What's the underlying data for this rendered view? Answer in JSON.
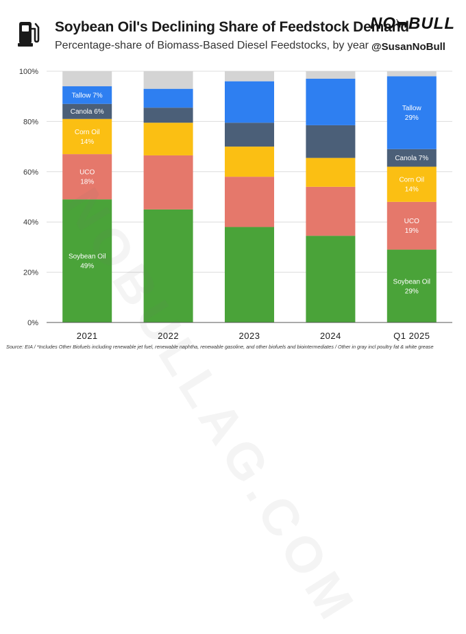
{
  "header": {
    "title": "Soybean Oil's Declining Share of Feedstock Demand",
    "subtitle": "Percentage-share of Biomass-Based Diesel Feedstocks, by year",
    "brand_left": "NO",
    "brand_right": "BULL",
    "handle": "@SusanNoBull"
  },
  "watermark": "NOBULLAG.COM",
  "footer": {
    "source": "Source: EIA / *Includes Other Biofuels including renewable jet fuel, renewable naphtha, renewable gasoline, and other biofuels and biointermediates / Other in gray incl poultry fat & white grease"
  },
  "colors": {
    "Soybean Oil": "#4aa339",
    "UCO": "#e5786b",
    "Corn Oil": "#fbbf13",
    "Canola": "#4b5f78",
    "Tallow": "#2e7ff1",
    "Other": "#d4d4d4",
    "grid": "#dcdcdc",
    "axis": "#555555",
    "label_light": "#ffffff"
  },
  "chart_data": {
    "type": "bar",
    "stacked": true,
    "title": "Soybean Oil's Declining Share of Feedstock Demand",
    "subtitle": "Percentage-share of Biomass-Based Diesel Feedstocks, by year",
    "xlabel": "",
    "ylabel": "",
    "ylim": [
      0,
      100
    ],
    "yticks": [
      0,
      20,
      40,
      60,
      80,
      100
    ],
    "ytick_labels": [
      "0%",
      "20%",
      "40%",
      "60%",
      "80%",
      "100%"
    ],
    "grid": true,
    "categories": [
      "2021",
      "2022",
      "2023",
      "2024",
      "Q1 2025"
    ],
    "series": [
      {
        "name": "Soybean Oil",
        "values": [
          49,
          45,
          38,
          34.5,
          29
        ]
      },
      {
        "name": "UCO",
        "values": [
          18,
          21.5,
          20,
          19.5,
          19
        ]
      },
      {
        "name": "Corn Oil",
        "values": [
          14,
          13,
          12,
          11.5,
          14
        ]
      },
      {
        "name": "Canola",
        "values": [
          6,
          6,
          9.5,
          13,
          7
        ]
      },
      {
        "name": "Tallow",
        "values": [
          7,
          7.5,
          16.5,
          18.5,
          29
        ]
      },
      {
        "name": "Other",
        "values": [
          6,
          7,
          4,
          3,
          2
        ]
      }
    ],
    "data_labels": [
      {
        "category": "2021",
        "series": "Soybean Oil",
        "name": "Soybean Oil",
        "value": "49%"
      },
      {
        "category": "2021",
        "series": "UCO",
        "name": "UCO",
        "value": "18%"
      },
      {
        "category": "2021",
        "series": "Corn Oil",
        "name": "Corn Oil",
        "value": "14%"
      },
      {
        "category": "2021",
        "series": "Canola",
        "text": "Canola 6%"
      },
      {
        "category": "2021",
        "series": "Tallow",
        "text": "Tallow 7%"
      },
      {
        "category": "Q1 2025",
        "series": "Soybean Oil",
        "name": "Soybean Oil",
        "value": "29%"
      },
      {
        "category": "Q1 2025",
        "series": "UCO",
        "name": "UCO",
        "value": "19%"
      },
      {
        "category": "Q1 2025",
        "series": "Corn Oil",
        "name": "Corn Oil",
        "value": "14%"
      },
      {
        "category": "Q1 2025",
        "series": "Canola",
        "text": "Canola 7%"
      },
      {
        "category": "Q1 2025",
        "series": "Tallow",
        "name": "Tallow",
        "value": "29%"
      }
    ]
  }
}
